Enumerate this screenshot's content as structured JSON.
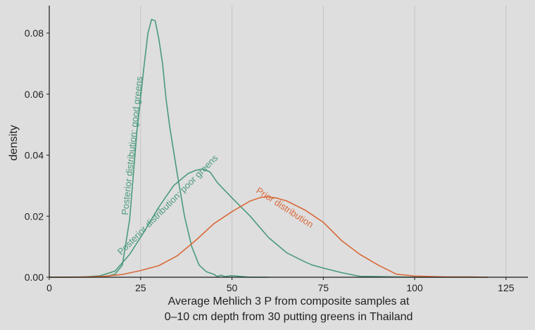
{
  "chart_data": {
    "type": "line",
    "title": "",
    "xlabel_lines": [
      "Average Mehlich 3 P from composite samples at",
      "0–10 cm depth from 30 putting greens in Thailand"
    ],
    "ylabel": "density",
    "xlim": [
      0,
      131
    ],
    "ylim": [
      0,
      0.089
    ],
    "x_ticks": [
      0,
      25,
      50,
      75,
      100,
      125
    ],
    "x_tick_labels": [
      "0",
      "25",
      "50",
      "75",
      "100",
      "125"
    ],
    "y_ticks": [
      0,
      0.02,
      0.04,
      0.06,
      0.08
    ],
    "y_tick_labels": [
      "0.00",
      "0.02",
      "0.04",
      "0.06",
      "0.08"
    ],
    "grid": "vertical major lines",
    "legend": "none (direct labels)",
    "series": [
      {
        "name": "Posterior distribution: good greens",
        "color": "#4a9a7c",
        "label_at": [
          23.5,
          0.043
        ],
        "label_angle": -84,
        "x": [
          0,
          10,
          15,
          18,
          20,
          22,
          24,
          26,
          27,
          28,
          29,
          30,
          31,
          32,
          33,
          35,
          37,
          39,
          41,
          43,
          45,
          46,
          47,
          48,
          50,
          55,
          60
        ],
        "y": [
          0,
          0,
          0.0001,
          0.001,
          0.004,
          0.019,
          0.048,
          0.07,
          0.08,
          0.0845,
          0.084,
          0.078,
          0.07,
          0.058,
          0.049,
          0.034,
          0.02,
          0.01,
          0.004,
          0.0018,
          0.001,
          0.0002,
          0.0007,
          0.0002,
          0.0005,
          0,
          0
        ]
      },
      {
        "name": "Posterior distribution: poor greens",
        "color": "#4a9a7c",
        "label_at": [
          33,
          0.023
        ],
        "label_angle": -45,
        "x": [
          0,
          10,
          14,
          18,
          22,
          26,
          30,
          34,
          38,
          40,
          42,
          44,
          46,
          50,
          55,
          60,
          65,
          70,
          72,
          75,
          80,
          85,
          90,
          100,
          110,
          120
        ],
        "y": [
          0,
          0.0001,
          0.0005,
          0.002,
          0.0075,
          0.015,
          0.023,
          0.03,
          0.034,
          0.035,
          0.0355,
          0.0345,
          0.031,
          0.026,
          0.02,
          0.013,
          0.008,
          0.005,
          0.004,
          0.003,
          0.0015,
          0.0003,
          0.0002,
          0,
          0,
          0
        ]
      },
      {
        "name": "Prior distribution",
        "color": "#d96a3a",
        "label_at": [
          64,
          0.022
        ],
        "label_angle": 33,
        "x": [
          0,
          5,
          10,
          15,
          20,
          25,
          30,
          35,
          40,
          45,
          50,
          55,
          58,
          60,
          62,
          65,
          70,
          75,
          80,
          85,
          90,
          95,
          100,
          105,
          110,
          115,
          120
        ],
        "y": [
          0,
          0,
          0.0001,
          0.0003,
          0.0009,
          0.0022,
          0.0038,
          0.007,
          0.012,
          0.0175,
          0.0215,
          0.025,
          0.0262,
          0.0263,
          0.026,
          0.025,
          0.022,
          0.018,
          0.012,
          0.0075,
          0.004,
          0.001,
          0.0004,
          0.0002,
          0.0001,
          0.0001,
          0
        ]
      }
    ]
  },
  "colors": {
    "background": "#dedede",
    "grid": "#c4c4c4",
    "axis": "#1a1a1a",
    "posterior": "#4a9a7c",
    "prior": "#d96a3a"
  }
}
